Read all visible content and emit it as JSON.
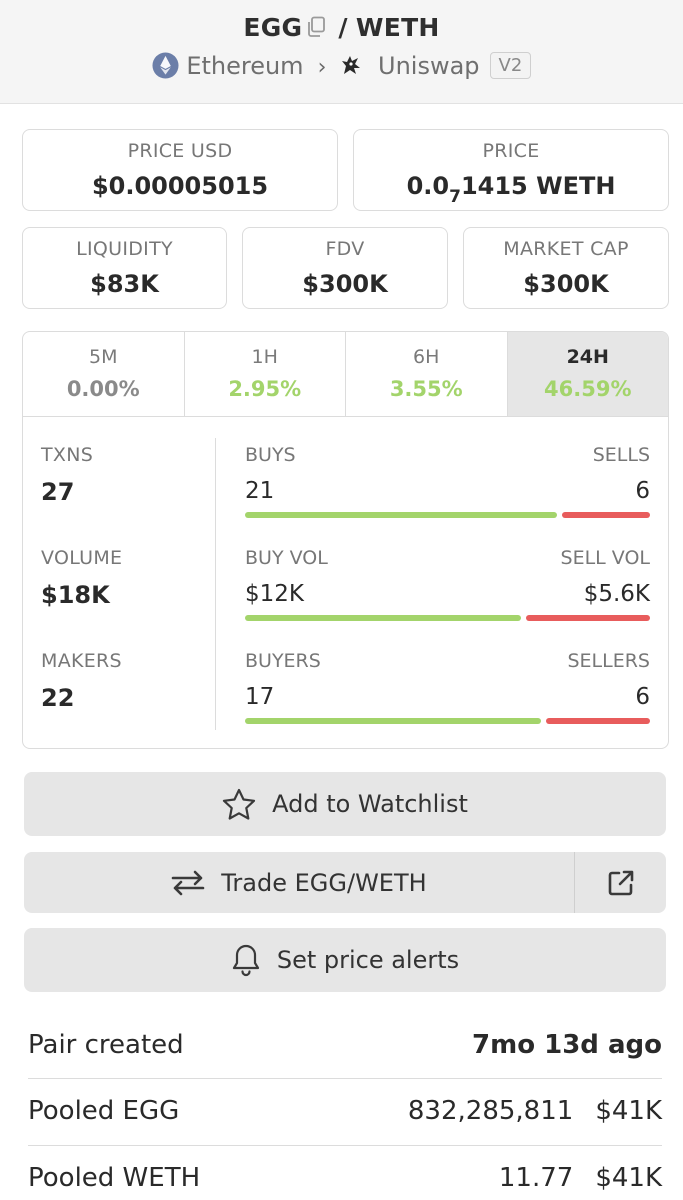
{
  "header": {
    "base": "EGG",
    "sep": "/",
    "quote": "WETH",
    "chain": "Ethereum",
    "dex": "Uniswap",
    "version": "V2"
  },
  "stats": {
    "price_usd_label": "PRICE USD",
    "price_usd": "$0.00005015",
    "price_label": "PRICE",
    "price_prefix": "0.0",
    "price_sub": "7",
    "price_rest": "1415 WETH",
    "liquidity_label": "LIQUIDITY",
    "liquidity": "$83K",
    "fdv_label": "FDV",
    "fdv": "$300K",
    "mcap_label": "MARKET CAP",
    "mcap": "$300K"
  },
  "timeframes": [
    {
      "label": "5M",
      "value": "0.00%"
    },
    {
      "label": "1H",
      "value": "2.95%"
    },
    {
      "label": "6H",
      "value": "3.55%"
    },
    {
      "label": "24H",
      "value": "46.59%"
    }
  ],
  "activity": {
    "txns_label": "TXNS",
    "txns": "27",
    "volume_label": "VOLUME",
    "volume": "$18K",
    "makers_label": "MAKERS",
    "makers": "22",
    "buys_label": "BUYS",
    "buys": "21",
    "sells_label": "SELLS",
    "sells": "6",
    "buys_fraction": 0.78,
    "buyvol_label": "BUY VOL",
    "buyvol": "$12K",
    "sellvol_label": "SELL VOL",
    "sellvol": "$5.6K",
    "buyvol_fraction": 0.69,
    "buyers_label": "BUYERS",
    "buyers": "17",
    "sellers_label": "SELLERS",
    "sellers": "6",
    "buyers_fraction": 0.74
  },
  "buttons": {
    "watchlist": "Add to Watchlist",
    "trade": "Trade EGG/WETH",
    "alerts": "Set price alerts"
  },
  "info": {
    "pair_created_label": "Pair created",
    "pair_created": "7mo 13d ago",
    "pooled_base_label": "Pooled EGG",
    "pooled_base_amount": "832,285,811",
    "pooled_base_usd": "$41K",
    "pooled_quote_label": "Pooled WETH",
    "pooled_quote_amount": "11.77",
    "pooled_quote_usd": "$41K"
  },
  "colors": {
    "green": "#a3d46b",
    "red": "#e85c5c"
  }
}
